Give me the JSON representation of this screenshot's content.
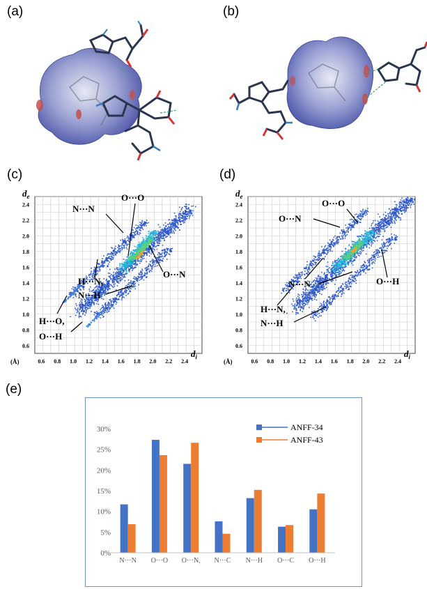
{
  "panel_labels": {
    "a": "(a)",
    "b": "(b)",
    "c": "(c)",
    "d": "(d)",
    "e": "(e)"
  },
  "fingerprints": [
    {
      "id": "c",
      "axis_unit": "(Å)",
      "xlabel": "d",
      "xlabel_sub": "i",
      "ylabel": "d",
      "ylabel_sub": "e",
      "x_ticks": [
        "0.6",
        "0.8",
        "1.0",
        "1.2",
        "1.4",
        "1.6",
        "1.8",
        "2.0",
        "2.2",
        "2.4"
      ],
      "y_ticks": [
        "2.4",
        "2.2",
        "2.0",
        "1.8",
        "1.6",
        "1.4",
        "1.2",
        "1.0",
        "0.8",
        "0.6"
      ],
      "annotations": [
        {
          "line1": "N···N",
          "line2": ""
        },
        {
          "line1": "O···O",
          "line2": ""
        },
        {
          "line1": "O···N",
          "line2": ""
        },
        {
          "line1": "H···N,",
          "line2": ""
        },
        {
          "line1": "N···H",
          "line2": ""
        },
        {
          "line1": "H···O,",
          "line2": "O···H"
        }
      ]
    },
    {
      "id": "d",
      "axis_unit": "(Å)",
      "xlabel": "d",
      "xlabel_sub": "i",
      "ylabel": "d",
      "ylabel_sub": "e",
      "x_ticks": [
        "0.6",
        "0.8",
        "1.0",
        "1.2",
        "1.4",
        "1.6",
        "1.8",
        "2.0",
        "2.2",
        "2.4"
      ],
      "y_ticks": [
        "2.4",
        "2.2",
        "2.0",
        "1.8",
        "1.6",
        "1.4",
        "1.2",
        "1.0",
        "0.8",
        "0.6"
      ],
      "annotations": [
        {
          "line1": "O···O",
          "line2": ""
        },
        {
          "line1": "O···N",
          "line2": ""
        },
        {
          "line1": "N···N",
          "line2": ""
        },
        {
          "line1": "O···H",
          "line2": ""
        },
        {
          "line1": "H···N,",
          "line2": "N···H"
        }
      ]
    }
  ],
  "chart_data": {
    "type": "bar",
    "categories": [
      "N···N",
      "O···O",
      "O···N,",
      "N···C",
      "N···H",
      "O···C",
      "O···H"
    ],
    "series": [
      {
        "name": "ANFF-34",
        "color": "#4472C4",
        "values": [
          11.7,
          27.3,
          21.5,
          7.6,
          13.2,
          6.3,
          10.5
        ]
      },
      {
        "name": "ANFF-43",
        "color": "#ED7D31",
        "values": [
          6.9,
          23.6,
          26.6,
          4.6,
          15.2,
          6.7,
          14.3
        ]
      }
    ],
    "y_ticks": [
      "0%",
      "5%",
      "10%",
      "15%",
      "20%",
      "25%",
      "30%"
    ],
    "ylim": [
      0,
      30
    ],
    "legend_position": "top-right",
    "grid": false
  }
}
